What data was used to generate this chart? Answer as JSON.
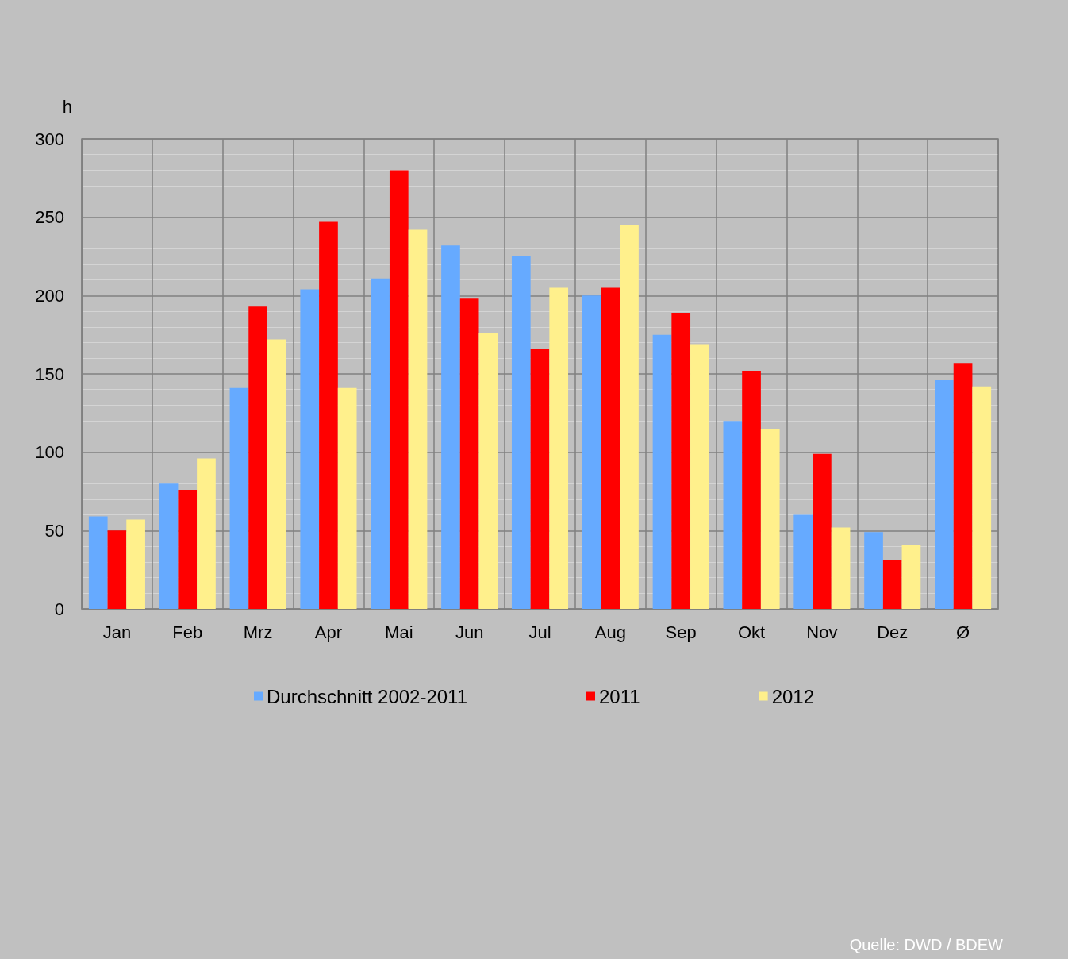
{
  "chart_data": {
    "type": "bar",
    "ylabel": "h",
    "categories": [
      "Jan",
      "Feb",
      "Mrz",
      "Apr",
      "Mai",
      "Jun",
      "Jul",
      "Aug",
      "Sep",
      "Okt",
      "Nov",
      "Dez",
      "Ø"
    ],
    "series": [
      {
        "name": "Durchschnitt 2002-2011",
        "color": "#66aaff",
        "values": [
          59,
          80,
          141,
          204,
          211,
          232,
          225,
          200,
          175,
          120,
          60,
          49,
          146
        ]
      },
      {
        "name": "2011",
        "color": "#ff0000",
        "values": [
          50,
          76,
          193,
          247,
          280,
          198,
          166,
          205,
          189,
          152,
          99,
          31,
          157
        ]
      },
      {
        "name": "2012",
        "color": "#fff08c",
        "values": [
          57,
          96,
          172,
          141,
          242,
          176,
          205,
          245,
          169,
          115,
          52,
          41,
          142
        ]
      }
    ],
    "ylim": [
      0,
      300
    ],
    "yticks": [
      0,
      50,
      100,
      150,
      200,
      250,
      300
    ],
    "grid": true,
    "legend": "bottom",
    "annotations": [
      "Quelle: DWD / BDEW"
    ]
  }
}
